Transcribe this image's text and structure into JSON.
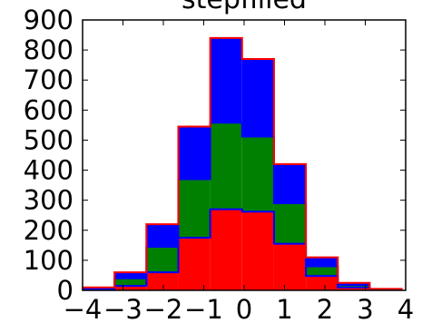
{
  "chart_data": {
    "type": "bar",
    "title": "stepfilled",
    "xlabel": "",
    "ylabel": "",
    "xlim": [
      -4,
      4
    ],
    "ylim": [
      0,
      900
    ],
    "grid": false,
    "legend": "none",
    "stacked": true,
    "histtype": "stepfilled",
    "bin_edges": [
      -4.0,
      -3.21,
      -2.42,
      -1.63,
      -0.84,
      -0.05,
      0.74,
      1.53,
      2.32,
      3.11,
      3.9
    ],
    "cumulative_top": [
      10,
      60,
      220,
      545,
      840,
      770,
      420,
      110,
      25,
      5
    ],
    "series": [
      {
        "name": "",
        "color": "#ff0000",
        "values": [
          3,
          15,
          60,
          175,
          270,
          262,
          155,
          48,
          10,
          2
        ]
      },
      {
        "name": "",
        "color": "#008000",
        "values": [
          3,
          25,
          85,
          195,
          288,
          250,
          135,
          32,
          8,
          2
        ]
      },
      {
        "name": "",
        "color": "#0000ff",
        "values": [
          4,
          20,
          75,
          175,
          282,
          258,
          130,
          30,
          7,
          1
        ]
      }
    ],
    "edge_color": "#ff0000",
    "xticks": [
      "−4",
      "−3",
      "−2",
      "−1",
      "0",
      "1",
      "2",
      "3",
      "4"
    ],
    "xtick_values": [
      -4,
      -3,
      -2,
      -1,
      0,
      1,
      2,
      3,
      4
    ],
    "yticks": [
      "0",
      "100",
      "200",
      "300",
      "400",
      "500",
      "600",
      "700",
      "800",
      "900"
    ],
    "ytick_values": [
      0,
      100,
      200,
      300,
      400,
      500,
      600,
      700,
      800,
      900
    ]
  }
}
